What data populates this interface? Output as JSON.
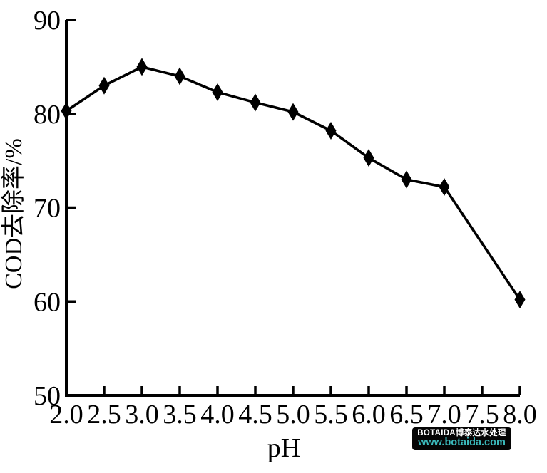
{
  "figure": {
    "background": "#ffffff",
    "ink_color": "#000000"
  },
  "chart_data": {
    "type": "line",
    "title": "",
    "xlabel": "pH",
    "ylabel": "COD去除率/%",
    "x": [
      2.0,
      2.5,
      3.0,
      3.5,
      4.0,
      4.5,
      5.0,
      5.5,
      6.0,
      6.5,
      7.0,
      8.0
    ],
    "series": [
      {
        "name": "COD removal rate",
        "values": [
          80.3,
          83.0,
          85.0,
          84.0,
          82.3,
          81.2,
          80.2,
          78.2,
          75.3,
          73.0,
          72.2,
          60.2
        ]
      }
    ],
    "xlim": [
      2.0,
      8.0
    ],
    "ylim": [
      50,
      90
    ],
    "xtick_labels": [
      "2.0",
      "2.5",
      "3.0",
      "3.5",
      "4.0",
      "4.5",
      "5.0",
      "5.5",
      "6.0",
      "6.5",
      "7.0",
      "7.5",
      "8.0"
    ],
    "ytick_labels": [
      "50",
      "60",
      "70",
      "80",
      "90"
    ],
    "marker": "diamond",
    "line_color": "#000000",
    "marker_color": "#000000",
    "grid": false,
    "legend_position": "none"
  },
  "watermark": {
    "line1": "BOTAIDA博泰达水处理",
    "line2": "www.botaida.com",
    "bg_color": "#050505",
    "line1_color": "#ffffff",
    "line2_color": "#3bb9bb"
  }
}
